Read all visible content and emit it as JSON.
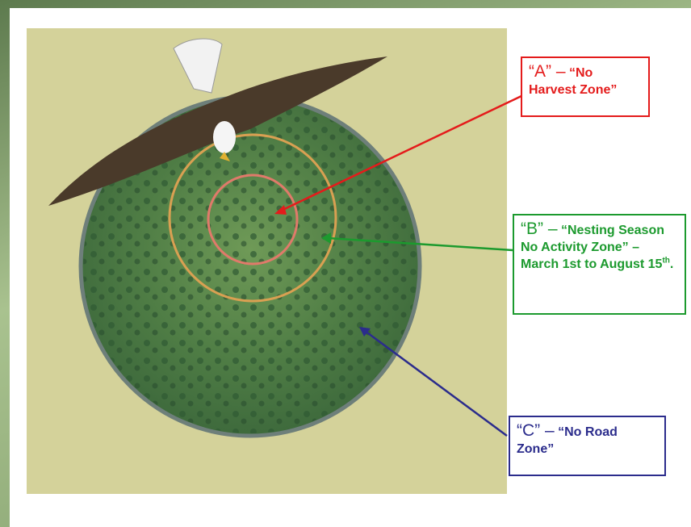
{
  "labels": [
    {
      "zone": "“A” –",
      "text": "“No Harvest Zone”"
    },
    {
      "zone": "“B” –",
      "text": "“Nesting Season No Activity Zone” – March 1st to August 15",
      "sup": "th",
      "tail": "."
    },
    {
      "zone": "“C” –",
      "text": "“No Road Zone”"
    }
  ]
}
